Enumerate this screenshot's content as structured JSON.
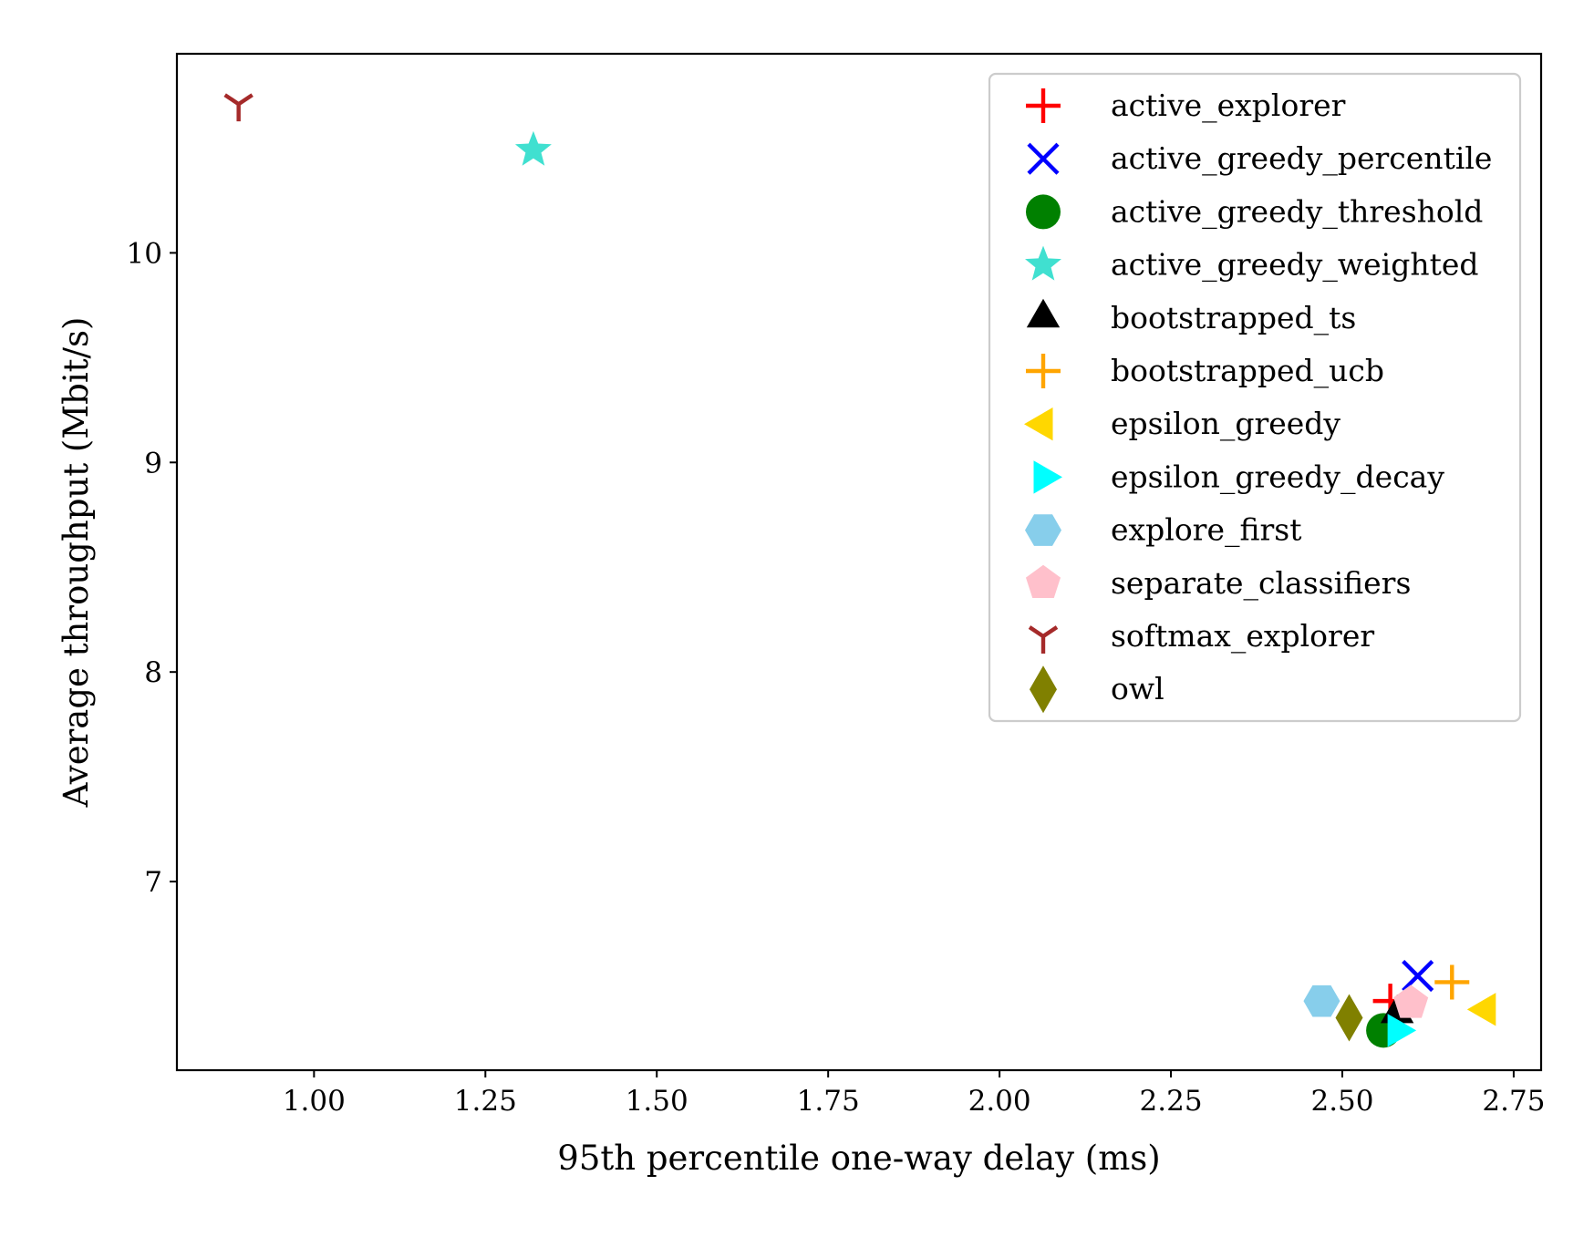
{
  "chart_data": {
    "type": "scatter",
    "title": "",
    "xlabel": "95th percentile one-way delay (ms)",
    "ylabel": "Average throughput (Mbit/s)",
    "xlim": [
      0.8,
      2.79
    ],
    "ylim": [
      6.1,
      10.95
    ],
    "x_ticks": [
      1.0,
      1.25,
      1.5,
      1.75,
      2.0,
      2.25,
      2.5,
      2.75
    ],
    "x_tick_labels": [
      "1.00",
      "1.25",
      "1.50",
      "1.75",
      "2.00",
      "2.25",
      "2.50",
      "2.75"
    ],
    "y_ticks": [
      7,
      8,
      9,
      10
    ],
    "y_tick_labels": [
      "7",
      "8",
      "9",
      "10"
    ],
    "grid": false,
    "legend_position": "top-right",
    "series": [
      {
        "name": "active_explorer",
        "marker": "plus",
        "color": "#ff0000",
        "x": 2.57,
        "y": 6.43
      },
      {
        "name": "active_greedy_percentile",
        "marker": "x",
        "color": "#0000ff",
        "x": 2.61,
        "y": 6.55
      },
      {
        "name": "active_greedy_threshold",
        "marker": "circle",
        "color": "#008000",
        "x": 2.56,
        "y": 6.29
      },
      {
        "name": "active_greedy_weighted",
        "marker": "star",
        "color": "#40e0d0",
        "x": 1.32,
        "y": 10.49
      },
      {
        "name": "bootstrapped_ts",
        "marker": "triangle-up",
        "color": "#000000",
        "x": 2.58,
        "y": 6.37
      },
      {
        "name": "bootstrapped_ucb",
        "marker": "plus",
        "color": "#ffa500",
        "x": 2.66,
        "y": 6.52
      },
      {
        "name": "epsilon_greedy",
        "marker": "triangle-left",
        "color": "#ffd700",
        "x": 2.71,
        "y": 6.39
      },
      {
        "name": "epsilon_greedy_decay",
        "marker": "triangle-right",
        "color": "#00ffff",
        "x": 2.58,
        "y": 6.29
      },
      {
        "name": "explore_first",
        "marker": "hexagon",
        "color": "#87ceeb",
        "x": 2.47,
        "y": 6.43
      },
      {
        "name": "separate_classifiers",
        "marker": "pentagon",
        "color": "#ffc0cb",
        "x": 2.6,
        "y": 6.42
      },
      {
        "name": "softmax_explorer",
        "marker": "tri-down",
        "color": "#a52a2a",
        "x": 0.89,
        "y": 10.71
      },
      {
        "name": "owl",
        "marker": "diamond",
        "color": "#808000",
        "x": 2.51,
        "y": 6.35
      }
    ]
  }
}
